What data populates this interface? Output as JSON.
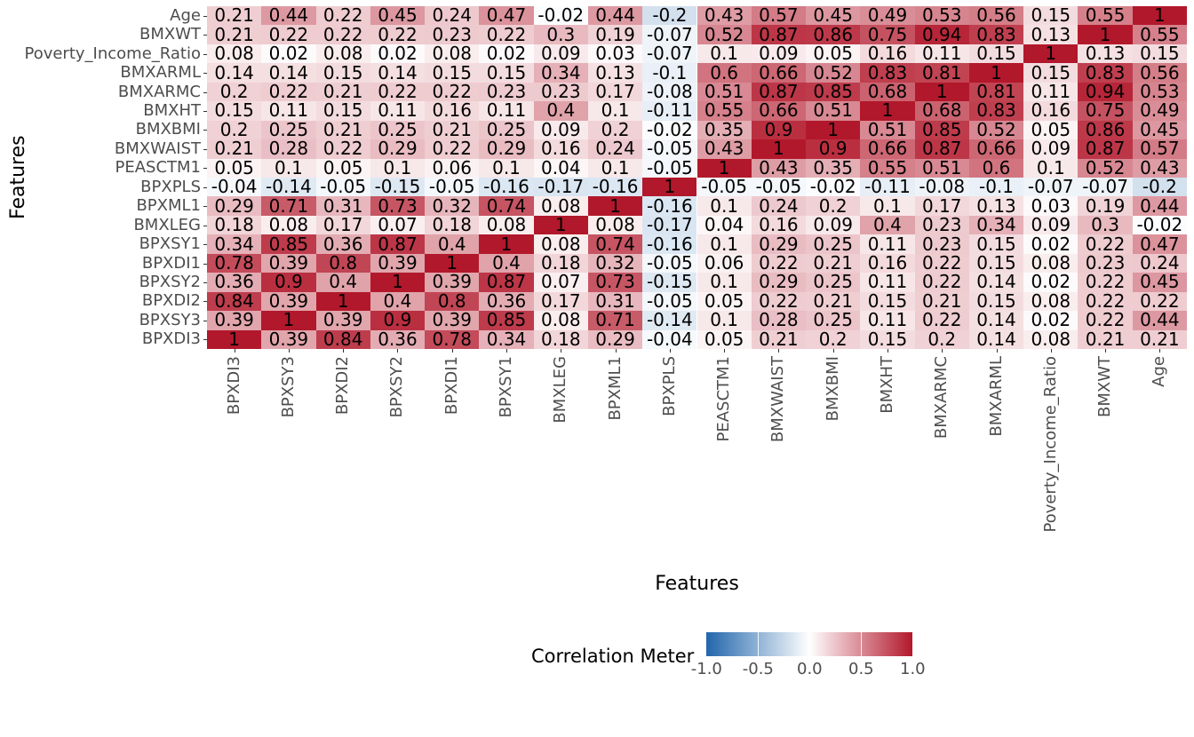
{
  "chart_data": {
    "type": "heatmap",
    "title": "",
    "xlabel": "Features",
    "ylabel": "Features",
    "x_labels": [
      "BPXDI3",
      "BPXSY3",
      "BPXDI2",
      "BPXSY2",
      "BPXDI1",
      "BPXSY1",
      "BMXLEG",
      "BPXML1",
      "BPXPLS",
      "PEASCTM1",
      "BMXWAIST",
      "BMXBMI",
      "BMXHT",
      "BMXARMC",
      "BMXARML",
      "Poverty_Income_Ratio",
      "BMXWT",
      "Age"
    ],
    "y_labels": [
      "Age",
      "BMXWT",
      "Poverty_Income_Ratio",
      "BMXARML",
      "BMXARMC",
      "BMXHT",
      "BMXBMI",
      "BMXWAIST",
      "PEASCTM1",
      "BPXPLS",
      "BPXML1",
      "BMXLEG",
      "BPXSY1",
      "BPXDI1",
      "BPXSY2",
      "BPXDI2",
      "BPXSY3",
      "BPXDI3"
    ],
    "matrix": [
      [
        0.21,
        0.44,
        0.22,
        0.45,
        0.24,
        0.47,
        -0.02,
        0.44,
        -0.2,
        0.43,
        0.57,
        0.45,
        0.49,
        0.53,
        0.56,
        0.15,
        0.55,
        1
      ],
      [
        0.21,
        0.22,
        0.22,
        0.22,
        0.23,
        0.22,
        0.3,
        0.19,
        -0.07,
        0.52,
        0.87,
        0.86,
        0.75,
        0.94,
        0.83,
        0.13,
        1,
        0.55
      ],
      [
        0.08,
        0.02,
        0.08,
        0.02,
        0.08,
        0.02,
        0.09,
        0.03,
        -0.07,
        0.1,
        0.09,
        0.05,
        0.16,
        0.11,
        0.15,
        1,
        0.13,
        0.15
      ],
      [
        0.14,
        0.14,
        0.15,
        0.14,
        0.15,
        0.15,
        0.34,
        0.13,
        -0.1,
        0.6,
        0.66,
        0.52,
        0.83,
        0.81,
        1,
        0.15,
        0.83,
        0.56
      ],
      [
        0.2,
        0.22,
        0.21,
        0.22,
        0.22,
        0.23,
        0.23,
        0.17,
        -0.08,
        0.51,
        0.87,
        0.85,
        0.68,
        1,
        0.81,
        0.11,
        0.94,
        0.53
      ],
      [
        0.15,
        0.11,
        0.15,
        0.11,
        0.16,
        0.11,
        0.4,
        0.1,
        -0.11,
        0.55,
        0.66,
        0.51,
        1,
        0.68,
        0.83,
        0.16,
        0.75,
        0.49
      ],
      [
        0.2,
        0.25,
        0.21,
        0.25,
        0.21,
        0.25,
        0.09,
        0.2,
        -0.02,
        0.35,
        0.9,
        1,
        0.51,
        0.85,
        0.52,
        0.05,
        0.86,
        0.45
      ],
      [
        0.21,
        0.28,
        0.22,
        0.29,
        0.22,
        0.29,
        0.16,
        0.24,
        -0.05,
        0.43,
        1,
        0.9,
        0.66,
        0.87,
        0.66,
        0.09,
        0.87,
        0.57
      ],
      [
        0.05,
        0.1,
        0.05,
        0.1,
        0.06,
        0.1,
        0.04,
        0.1,
        -0.05,
        1,
        0.43,
        0.35,
        0.55,
        0.51,
        0.6,
        0.1,
        0.52,
        0.43
      ],
      [
        -0.04,
        -0.14,
        -0.05,
        -0.15,
        -0.05,
        -0.16,
        -0.17,
        -0.16,
        1,
        -0.05,
        -0.05,
        -0.02,
        -0.11,
        -0.08,
        -0.1,
        -0.07,
        -0.07,
        -0.2
      ],
      [
        0.29,
        0.71,
        0.31,
        0.73,
        0.32,
        0.74,
        0.08,
        1,
        -0.16,
        0.1,
        0.24,
        0.2,
        0.1,
        0.17,
        0.13,
        0.03,
        0.19,
        0.44
      ],
      [
        0.18,
        0.08,
        0.17,
        0.07,
        0.18,
        0.08,
        1,
        0.08,
        -0.17,
        0.04,
        0.16,
        0.09,
        0.4,
        0.23,
        0.34,
        0.09,
        0.3,
        -0.02
      ],
      [
        0.34,
        0.85,
        0.36,
        0.87,
        0.4,
        1,
        0.08,
        0.74,
        -0.16,
        0.1,
        0.29,
        0.25,
        0.11,
        0.23,
        0.15,
        0.02,
        0.22,
        0.47
      ],
      [
        0.78,
        0.39,
        0.8,
        0.39,
        1,
        0.4,
        0.18,
        0.32,
        -0.05,
        0.06,
        0.22,
        0.21,
        0.16,
        0.22,
        0.15,
        0.08,
        0.23,
        0.24
      ],
      [
        0.36,
        0.9,
        0.4,
        1,
        0.39,
        0.87,
        0.07,
        0.73,
        -0.15,
        0.1,
        0.29,
        0.25,
        0.11,
        0.22,
        0.14,
        0.02,
        0.22,
        0.45
      ],
      [
        0.84,
        0.39,
        1,
        0.4,
        0.8,
        0.36,
        0.17,
        0.31,
        -0.05,
        0.05,
        0.22,
        0.21,
        0.15,
        0.21,
        0.15,
        0.08,
        0.22,
        0.22
      ],
      [
        0.39,
        1,
        0.39,
        0.9,
        0.39,
        0.85,
        0.08,
        0.71,
        -0.14,
        0.1,
        0.28,
        0.25,
        0.11,
        0.22,
        0.14,
        0.02,
        0.22,
        0.44
      ],
      [
        1,
        0.39,
        0.84,
        0.36,
        0.78,
        0.34,
        0.18,
        0.29,
        -0.04,
        0.05,
        0.21,
        0.2,
        0.15,
        0.2,
        0.14,
        0.08,
        0.21,
        0.21
      ]
    ],
    "value_range": [
      -1,
      1
    ],
    "colorscale": {
      "low": "#2166AC",
      "mid": "#FFFFFF",
      "high": "#B2182B"
    },
    "legend": {
      "title": "Correlation Meter",
      "ticks": [
        "-1.0",
        "-0.5",
        "0.0",
        "0.5",
        "1.0"
      ],
      "tick_values": [
        -1,
        -0.5,
        0,
        0.5,
        1
      ],
      "position": "bottom"
    },
    "grid": false,
    "cell_text_color": "#000000",
    "axis_text_color": "#4d4d4d"
  }
}
